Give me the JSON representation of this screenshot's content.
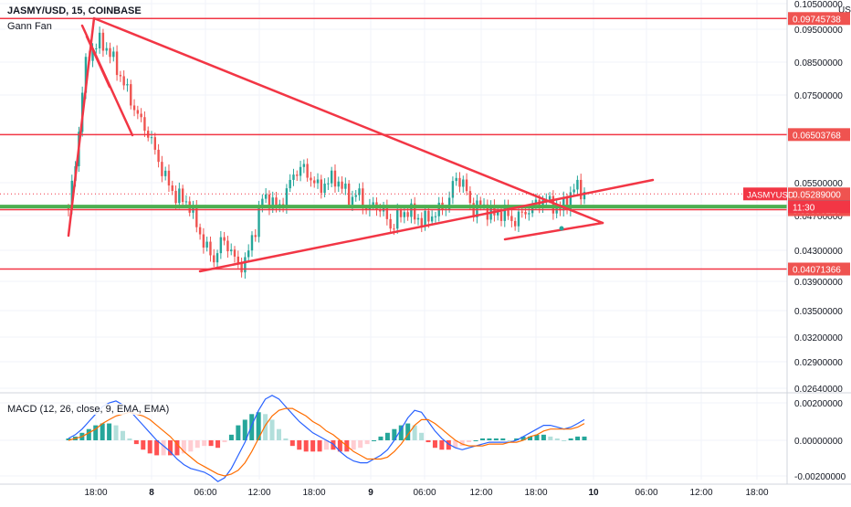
{
  "header": {
    "symbol_line": "JASMY/USD, 15, COINBASE",
    "indicator_label": "Gann Fan"
  },
  "macd_panel": {
    "label": "MACD (12, 26, close, 9, EMA, EMA)"
  },
  "price_axis": {
    "currency": "USD",
    "ticks": [
      "0.10500000",
      "0.09500000",
      "0.08500000",
      "0.07500000",
      "0.05500000",
      "0.04700000",
      "0.04300000",
      "0.03900000",
      "0.03500000",
      "0.03200000",
      "0.02900000",
      "0.02640000"
    ],
    "ticker_tag": "JASMYUSD",
    "countdown": "11:30"
  },
  "macd_axis": {
    "ticks": [
      "0.00200000",
      "0.00000000",
      "-0.00200000"
    ]
  },
  "time_axis": {
    "labels": [
      "18:00",
      "8",
      "06:00",
      "12:00",
      "18:00",
      "9",
      "06:00",
      "12:00",
      "18:00",
      "10",
      "06:00",
      "12:00",
      "18:00"
    ]
  },
  "price_labels": [
    {
      "value": "0.09745738",
      "color": "#ef5350"
    },
    {
      "value": "0.06503768",
      "color": "#ef5350"
    },
    {
      "value": "0.05289000",
      "color": "#ef5350"
    },
    {
      "value": "0.05060914",
      "color": "#26a69a"
    },
    {
      "value": "0.05006129",
      "color": "#ef5350"
    },
    {
      "value": "0.04071366",
      "color": "#ef5350"
    }
  ],
  "colors": {
    "up": "#26a69a",
    "down": "#ef5350",
    "drawing": "#f23645",
    "macd_line": "#2962ff",
    "signal_line": "#ff6d00",
    "hist_up_strong": "#26a69a",
    "hist_up_weak": "#b2dfdb",
    "hist_down_strong": "#ff5252",
    "hist_down_weak": "#ffcdd2",
    "support_band": "#4caf50"
  },
  "chart_data": [
    {
      "type": "candlestick",
      "title": "JASMY/USD, 15, COINBASE",
      "x_labels": [
        "18:00",
        "8",
        "06:00",
        "12:00",
        "18:00",
        "9",
        "06:00",
        "12:00",
        "18:00",
        "10",
        "06:00",
        "12:00",
        "18:00"
      ],
      "y_scale": "log",
      "horizontal_levels": [
        0.09745738,
        0.06503768,
        0.05060914,
        0.05006129,
        0.04071366
      ],
      "last_price": 0.05289,
      "close_path": [
        0.05,
        0.06,
        0.082,
        0.088,
        0.09,
        0.087,
        0.082,
        0.077,
        0.072,
        0.068,
        0.065,
        0.06,
        0.056,
        0.053,
        0.052,
        0.051,
        0.047,
        0.044,
        0.042,
        0.045,
        0.044,
        0.041,
        0.042,
        0.046,
        0.052,
        0.052,
        0.05,
        0.053,
        0.057,
        0.058,
        0.056,
        0.054,
        0.055,
        0.056,
        0.054,
        0.052,
        0.053,
        0.05,
        0.051,
        0.05,
        0.047,
        0.049,
        0.05,
        0.049,
        0.048,
        0.049,
        0.05,
        0.051,
        0.056,
        0.055,
        0.05,
        0.051,
        0.05,
        0.049,
        0.05,
        0.048,
        0.049,
        0.05,
        0.051,
        0.052,
        0.051,
        0.05,
        0.052,
        0.0545,
        0.0529
      ]
    },
    {
      "type": "line",
      "title": "MACD (12, 26, close, 9, EMA, EMA)",
      "series": [
        {
          "name": "MACD",
          "values": [
            0.0001,
            0.0003,
            0.0006,
            0.001,
            0.0014,
            0.0018,
            0.002,
            0.0021,
            0.0019,
            0.0016,
            0.0012,
            0.0008,
            0.0004,
            0.0,
            -0.0003,
            -0.0006,
            -0.001,
            -0.0013,
            -0.0015,
            -0.0016,
            -0.0017,
            -0.0019,
            -0.0022,
            -0.002,
            -0.0015,
            -0.0008,
            -0.0001,
            0.0008,
            0.0016,
            0.0022,
            0.0024,
            0.0022,
            0.0018,
            0.0014,
            0.001,
            0.0007,
            0.0004,
            0.0002,
            0.0,
            -0.0002,
            -0.0006,
            -0.0009,
            -0.0011,
            -0.0012,
            -0.0012,
            -0.001,
            -0.0008,
            -0.0005,
            0.0,
            0.0006,
            0.0012,
            0.0016,
            0.0015,
            0.001,
            0.0005,
            0.0001,
            -0.0002,
            -0.0004,
            -0.0005,
            -0.0004,
            -0.0003,
            -0.0002,
            -0.0001,
            -0.0001,
            -0.0001,
            -0.0001,
            0.0,
            0.0002,
            0.0004,
            0.0006,
            0.0008,
            0.0008,
            0.0007,
            0.0006,
            0.0007,
            0.0009,
            0.0011
          ]
        },
        {
          "name": "Signal",
          "values": [
            0.0,
            0.0001,
            0.0002,
            0.0004,
            0.0006,
            0.0009,
            0.0011,
            0.0013,
            0.0014,
            0.0015,
            0.0014,
            0.0013,
            0.0011,
            0.0008,
            0.0005,
            0.0002,
            -0.0002,
            -0.0006,
            -0.0009,
            -0.0012,
            -0.0014,
            -0.0016,
            -0.0018,
            -0.0019,
            -0.0018,
            -0.0016,
            -0.0012,
            -0.0006,
            0.0001,
            0.0008,
            0.0013,
            0.0016,
            0.0017,
            0.0017,
            0.0015,
            0.0013,
            0.001,
            0.0008,
            0.0005,
            0.0003,
            0.0,
            -0.0003,
            -0.0006,
            -0.0008,
            -0.001,
            -0.001,
            -0.001,
            -0.0009,
            -0.0006,
            -0.0002,
            0.0003,
            0.0008,
            0.0011,
            0.0011,
            0.0009,
            0.0006,
            0.0003,
            0.0,
            -0.0002,
            -0.0003,
            -0.0003,
            -0.0003,
            -0.0002,
            -0.0002,
            -0.0002,
            -0.0001,
            -0.0001,
            0.0,
            0.0002,
            0.0003,
            0.0005,
            0.0006,
            0.0006,
            0.0006,
            0.0006,
            0.0007,
            0.0009
          ]
        }
      ]
    }
  ]
}
